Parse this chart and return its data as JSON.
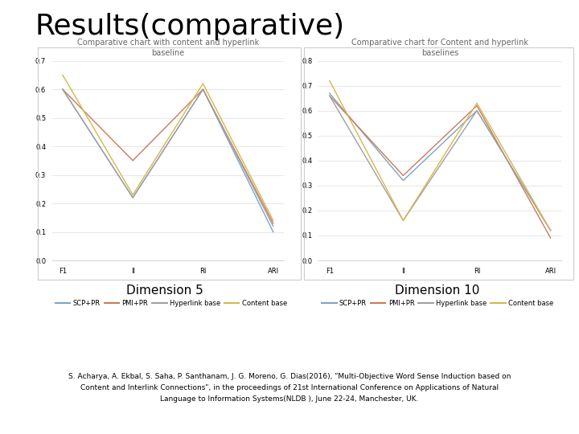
{
  "title": "Results(comparative)",
  "chart1_title": "Comparative chart with content and hyperlink\nbaseline",
  "chart2_title": "Comparative chart for Content and hyperlink\nbaselines",
  "categories": [
    "F1",
    "II",
    "RI",
    "ARI"
  ],
  "chart1": {
    "SCP+PR": [
      0.6,
      0.22,
      0.6,
      0.1
    ],
    "PMI+PR": [
      0.6,
      0.35,
      0.6,
      0.13
    ],
    "Hyperlink base": [
      0.6,
      0.22,
      0.6,
      0.12
    ],
    "Content base": [
      0.65,
      0.23,
      0.62,
      0.14
    ]
  },
  "chart2": {
    "SCP+PR": [
      0.67,
      0.32,
      0.6,
      0.12
    ],
    "PMI+PR": [
      0.66,
      0.34,
      0.62,
      0.09
    ],
    "Hyperlink base": [
      0.66,
      0.16,
      0.6,
      0.12
    ],
    "Content base": [
      0.72,
      0.16,
      0.63,
      0.12
    ]
  },
  "chart1_ylim": [
    0,
    0.7
  ],
  "chart1_yticks": [
    0,
    0.1,
    0.2,
    0.3,
    0.4,
    0.5,
    0.6,
    0.7
  ],
  "chart2_ylim": [
    0,
    0.8
  ],
  "chart2_yticks": [
    0,
    0.1,
    0.2,
    0.3,
    0.4,
    0.5,
    0.6,
    0.7,
    0.8
  ],
  "colors": {
    "SCP+PR": "#7ca4c8",
    "PMI+PR": "#c97b5a",
    "Hyperlink base": "#a0a0a0",
    "Content base": "#d4b84a"
  },
  "dim5_label": "Dimension 5",
  "dim10_label": "Dimension 10",
  "footer": "S. Acharya, A. Ekbal, S. Saha, P. Santhanam, J. G. Moreno, G. Dias(2016), \"Multi-Objective Word Sense Induction based on\nContent and Interlink Connections\", in the proceedings of 21st International Conference on Applications of Natural\nLanguage to Information Systems(NLDB ), June 22-24, Manchester, UK.",
  "background_color": "#ffffff",
  "border_color": "#cccccc",
  "grid_color": "#e8e8e8",
  "title_fontsize": 26,
  "chart_title_fontsize": 7,
  "tick_fontsize": 6,
  "legend_fontsize": 6,
  "dim_label_fontsize": 11,
  "footer_fontsize": 6.5
}
